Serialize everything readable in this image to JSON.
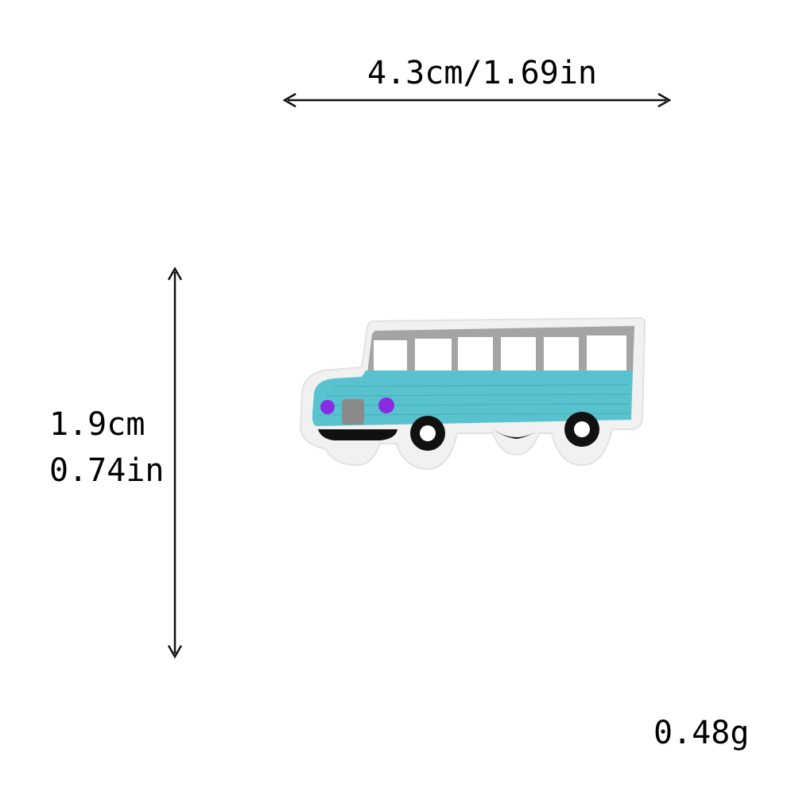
{
  "dimensions": {
    "width": "4.3cm/1.69in",
    "height_cm": "1.9cm",
    "height_in": "0.74in"
  },
  "weight": "0.48g",
  "product": {
    "icon": "bus-patch-image",
    "colors": {
      "body": "#58c3cf",
      "border": "#f1f1f1",
      "roof": "#a4a4a4",
      "windows": "#ffffff",
      "wheels": "#111111",
      "lights": "#8a2be2"
    }
  }
}
